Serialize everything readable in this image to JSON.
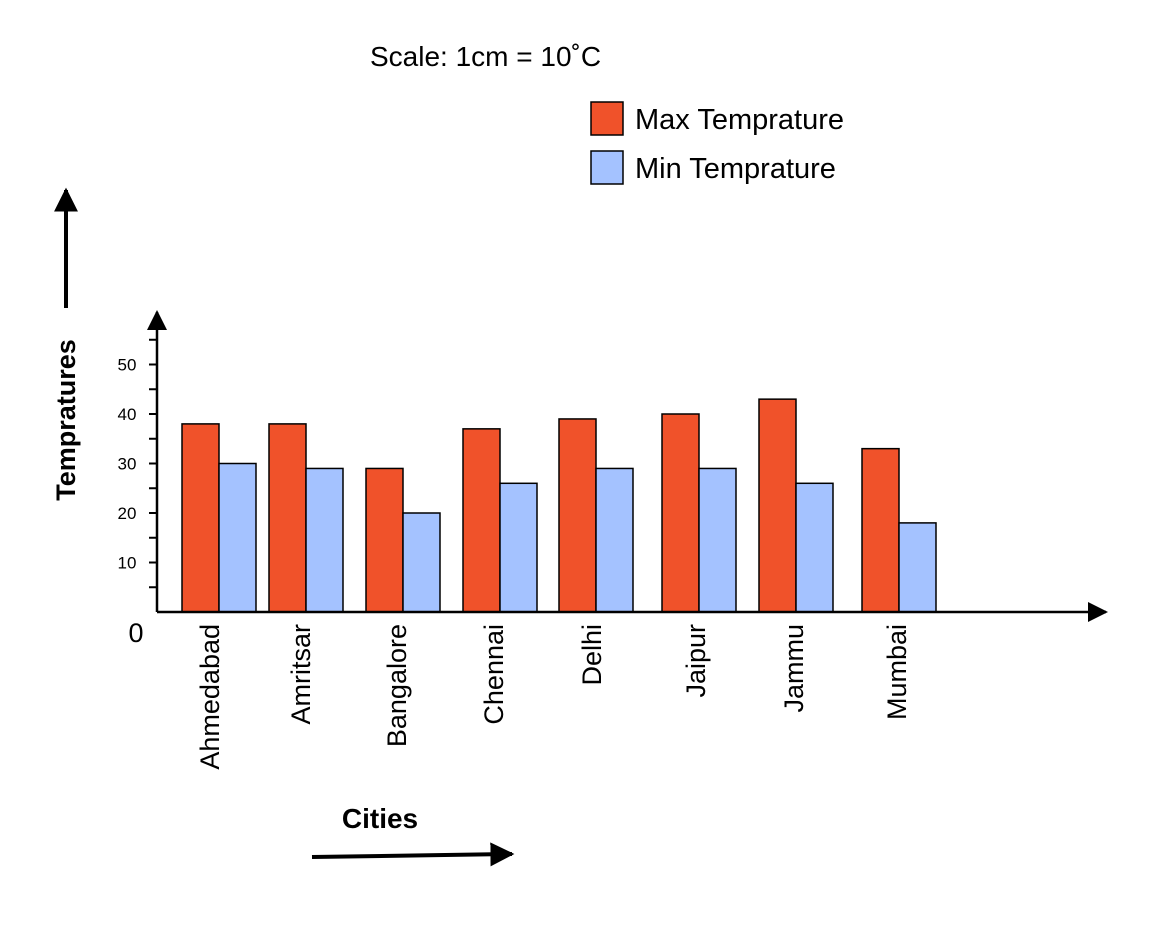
{
  "chart_data": {
    "type": "bar",
    "scale_note": "Scale: 1cm = 10˚C",
    "title": "",
    "xlabel": "Cities",
    "ylabel": "Tempratures",
    "origin_label": "0",
    "categories": [
      "Ahmedabad",
      "Amritsar",
      "Bangalore",
      "Chennai",
      "Delhi",
      "Jaipur",
      "Jammu",
      "Mumbai"
    ],
    "series": [
      {
        "name": "Max Temprature",
        "color": "#F0522A",
        "values": [
          38,
          38,
          29,
          37,
          39,
          40,
          43,
          33
        ]
      },
      {
        "name": "Min Temprature",
        "color": "#A4C2FF",
        "values": [
          30,
          29,
          20,
          26,
          29,
          29,
          26,
          18
        ]
      }
    ],
    "yticks": [
      10,
      20,
      30,
      40,
      50
    ],
    "ylim": [
      0,
      57
    ],
    "grid": false,
    "legend_position": "top-right"
  }
}
